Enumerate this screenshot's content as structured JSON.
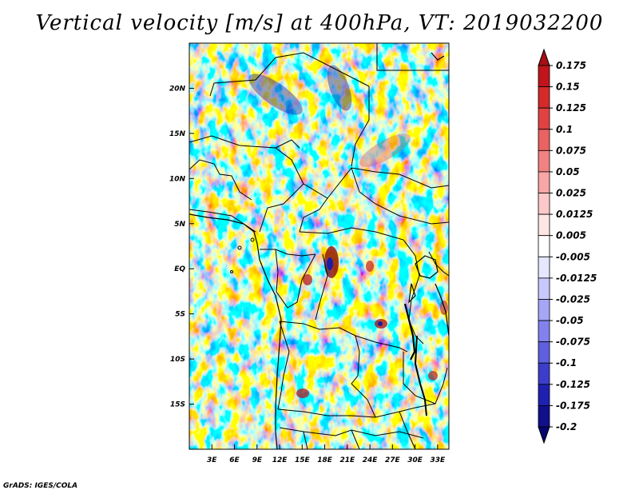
{
  "title": "Vertical velocity [m/s] at 400hPa, VT: 2019032200",
  "credit": "GrADS: IGES/COLA",
  "map": {
    "lon_ticks": [
      "3E",
      "6E",
      "9E",
      "12E",
      "15E",
      "18E",
      "21E",
      "24E",
      "27E",
      "30E",
      "33E"
    ],
    "lon_values": [
      3,
      6,
      9,
      12,
      15,
      18,
      21,
      24,
      27,
      30,
      33
    ],
    "lon_range": [
      0,
      34.5
    ],
    "lat_ticks": [
      "20N",
      "15N",
      "10N",
      "5N",
      "EQ",
      "5S",
      "10S",
      "15S"
    ],
    "lat_values": [
      20,
      15,
      10,
      5,
      0,
      -5,
      -10,
      -15
    ],
    "lat_range": [
      -20,
      25
    ]
  },
  "colorbar": {
    "labels": [
      "0.175",
      "0.15",
      "0.125",
      "0.1",
      "0.075",
      "0.05",
      "0.025",
      "0.0125",
      "0.005",
      "-0.005",
      "-0.0125",
      "-0.025",
      "-0.05",
      "-0.075",
      "-0.1",
      "-0.125",
      "-0.175",
      "-0.2"
    ],
    "colors": [
      "#a50f15",
      "#c0151c",
      "#d42a2a",
      "#e04242",
      "#ea6262",
      "#f28282",
      "#f8a6a6",
      "#fcc8c8",
      "#fee6e6",
      "#ffffff",
      "#e6e6ff",
      "#c8c8fc",
      "#a6a6f6",
      "#8282ee",
      "#5f5fe0",
      "#3d3dcc",
      "#2020b0",
      "#10108a",
      "#060670"
    ]
  }
}
